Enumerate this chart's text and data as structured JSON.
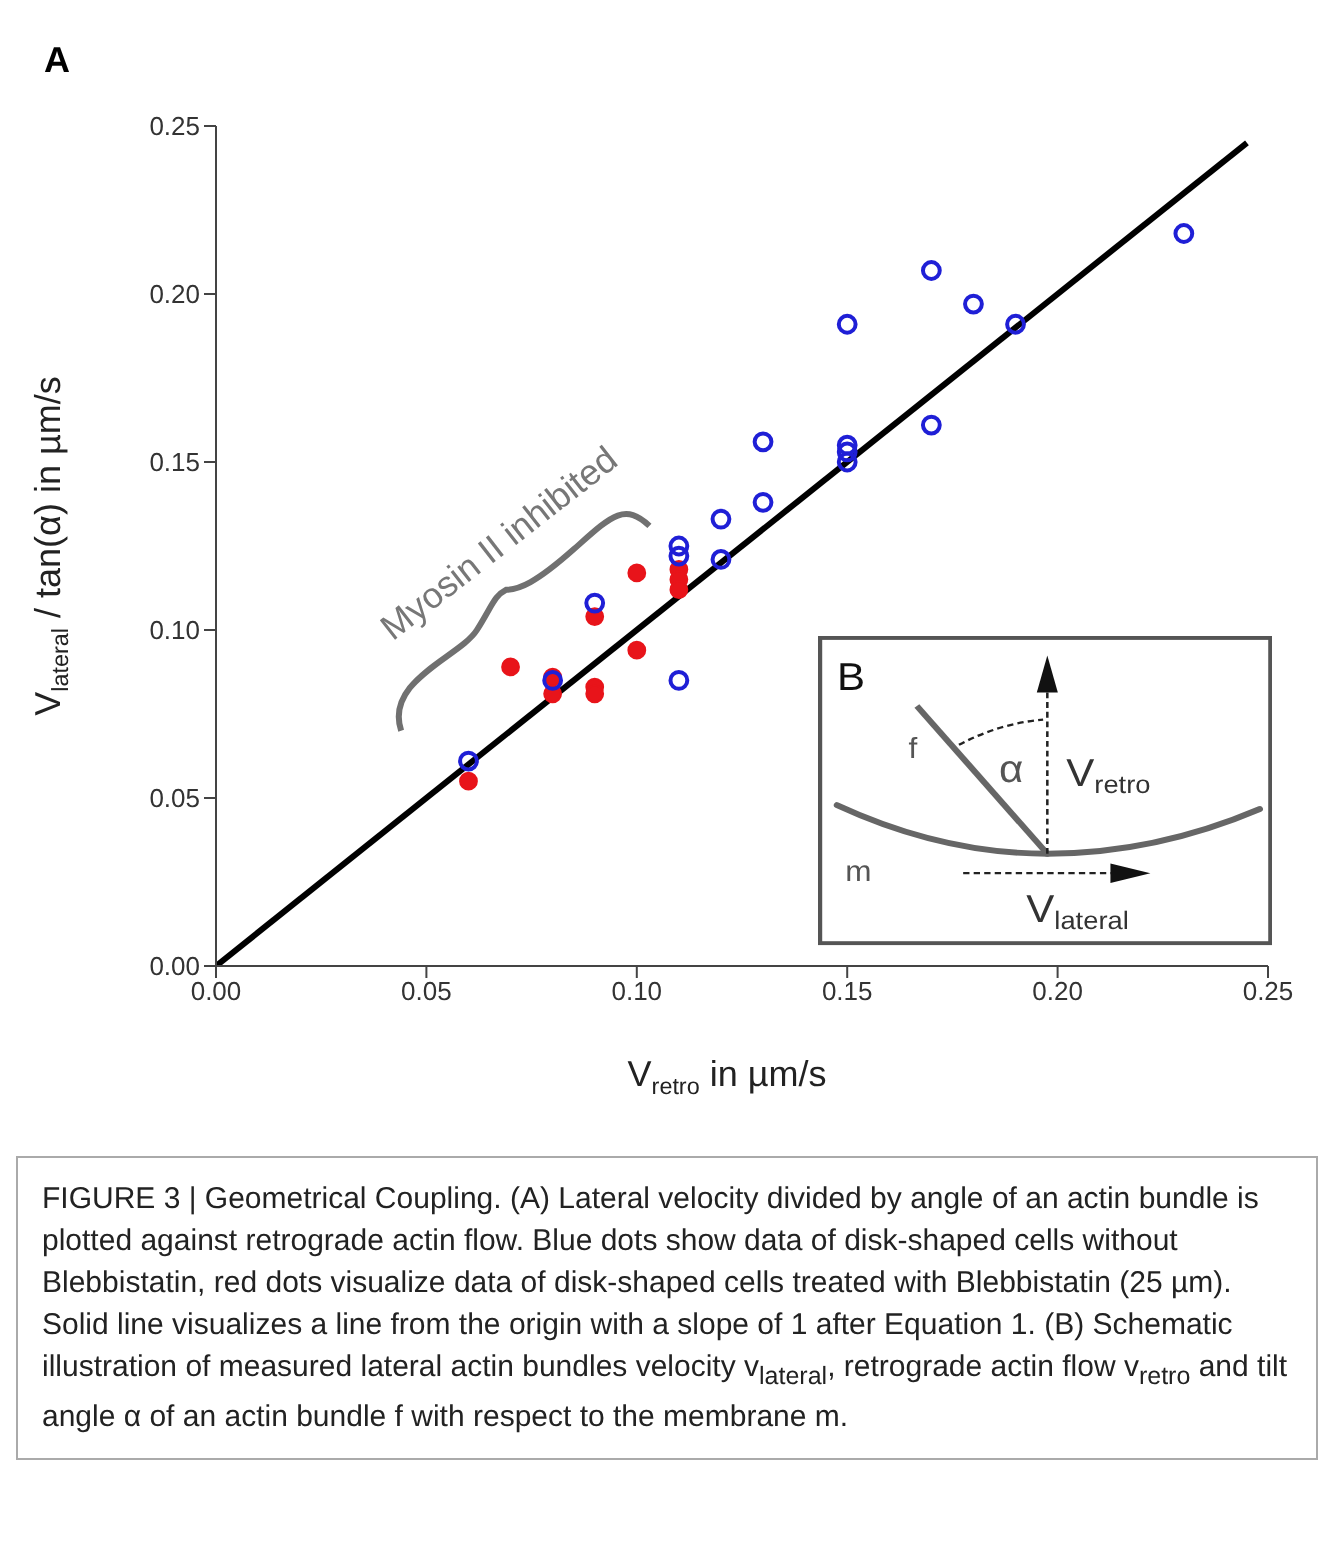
{
  "chart_data": {
    "type": "scatter",
    "xlabel": "V$_{retro}$ in µm/s",
    "ylabel": "V$_{lateral}$ / tan(α) in µm/s",
    "xlim": [
      0,
      0.25
    ],
    "ylim": [
      0,
      0.25
    ],
    "xticks": [
      {
        "value": 0,
        "label": "0.00"
      },
      {
        "value": 0.05,
        "label": "0.05"
      },
      {
        "value": 0.1,
        "label": "0.10"
      },
      {
        "value": 0.15,
        "label": "0.15"
      },
      {
        "value": 0.2,
        "label": "0.20"
      },
      {
        "value": 0.25,
        "label": "0.25"
      }
    ],
    "yticks": [
      {
        "value": 0,
        "label": "0.00"
      },
      {
        "value": 0.05,
        "label": "0.05"
      },
      {
        "value": 0.1,
        "label": "0.10"
      },
      {
        "value": 0.15,
        "label": "0.15"
      },
      {
        "value": 0.2,
        "label": "0.20"
      },
      {
        "value": 0.25,
        "label": "0.25"
      }
    ],
    "marker": "circle",
    "series": [
      {
        "color": "#1f1fd6",
        "x": [
          0.06,
          0.08,
          0.09,
          0.11,
          0.11,
          0.11,
          0.12,
          0.12,
          0.13,
          0.13,
          0.15,
          0.15,
          0.15,
          0.15,
          0.17,
          0.17,
          0.18,
          0.19,
          0.23
        ],
        "values": [
          0.061,
          0.085,
          0.108,
          0.085,
          0.122,
          0.125,
          0.121,
          0.133,
          0.138,
          0.156,
          0.15,
          0.153,
          0.155,
          0.191,
          0.161,
          0.207,
          0.197,
          0.191,
          0.218
        ]
      },
      {
        "color": "#e8141a",
        "x": [
          0.06,
          0.07,
          0.08,
          0.08,
          0.09,
          0.09,
          0.09,
          0.1,
          0.1,
          0.11,
          0.11,
          0.11
        ],
        "values": [
          0.055,
          0.089,
          0.086,
          0.081,
          0.104,
          0.083,
          0.081,
          0.117,
          0.094,
          0.118,
          0.115,
          0.112
        ]
      },
      {
        "type": "line",
        "marker": "none",
        "color": "#000000",
        "x": [
          0,
          0.245
        ],
        "values": [
          0,
          0.245
        ]
      }
    ],
    "annotations": [
      "A",
      "Myosin II inhibited",
      "B",
      "f",
      "α",
      "V$_{retro}$",
      "m",
      "V$_{lateral}$",
      "FIGURE 3 | Geometrical Coupling. (A) Lateral velocity divided by angle of an actin bundle is plotted against retrograde actin flow. Blue dots show data of disk-shaped cells without Blebbistatin, red dots visualize data of disk-shaped cells treated with Blebbistatin (25 µm). Solid line visualizes a line from the origin with a slope of 1 after Equation 1. (B) Schematic illustration of measured lateral actin bundles velocity v$_{lateral}$, retrograde actin flow v$_{retro}$ and tilt angle α of an actin bundle f with respect to the membrane m."
    ]
  }
}
